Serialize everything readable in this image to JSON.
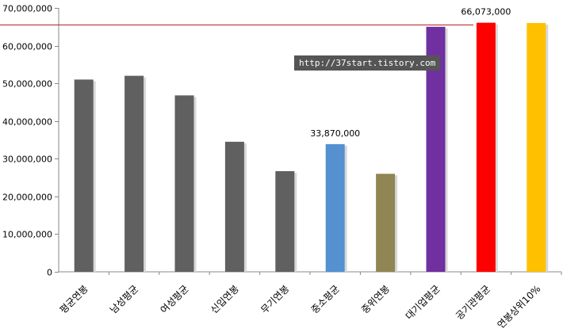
{
  "chart_data": {
    "type": "bar",
    "title": "",
    "xlabel": "",
    "ylabel": "",
    "ylim": [
      0,
      70000000
    ],
    "y_ticks": [
      0,
      10000000,
      20000000,
      30000000,
      40000000,
      50000000,
      60000000,
      70000000
    ],
    "y_tick_labels": [
      "0",
      "10,000,000",
      "20,000,000",
      "30,000,000",
      "40,000,000",
      "50,000,000",
      "60,000,000",
      "70,000,000"
    ],
    "categories": [
      "평균연봉",
      "남성평균",
      "여성평균",
      "신입연봉",
      "무기연봉",
      "중소평균",
      "중위연봉",
      "대기업평균",
      "공기관평균",
      "연봉상위10%"
    ],
    "values": [
      51000000,
      52000000,
      46800000,
      34500000,
      26700000,
      33870000,
      26000000,
      65000000,
      66073000,
      66000000
    ],
    "bar_colors": [
      "#606060",
      "#606060",
      "#606060",
      "#606060",
      "#606060",
      "#5590d0",
      "#8f8653",
      "#7030a0",
      "#ff0000",
      "#ffc000"
    ],
    "data_labels": [
      {
        "index": 5,
        "text": "33,870,000"
      },
      {
        "index": 8,
        "text": "66,073,000"
      }
    ],
    "reference_line": {
      "value": 65500000,
      "color": "#b22222"
    },
    "grid": false,
    "legend": "none",
    "watermark": "http://37start.tistory.com"
  }
}
